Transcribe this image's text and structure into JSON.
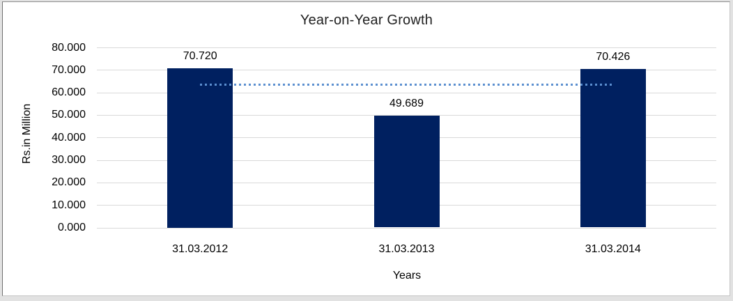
{
  "chart_data": {
    "type": "bar",
    "title": "Year-on-Year Growth",
    "xlabel": "Years",
    "ylabel": "Rs.in Million",
    "categories": [
      "31.03.2012",
      "31.03.2013",
      "31.03.2014"
    ],
    "values": [
      70.72,
      49.689,
      70.426
    ],
    "data_labels": [
      "70.720",
      "49.689",
      "70.426"
    ],
    "ylim": [
      0,
      80
    ],
    "ytick_values": [
      0,
      10,
      20,
      30,
      40,
      50,
      60,
      70,
      80
    ],
    "ytick_labels": [
      "0.000",
      "10.000",
      "20.000",
      "30.000",
      "40.000",
      "50.000",
      "60.000",
      "70.000",
      "80.000"
    ],
    "grid": "horizontal",
    "legend": "none",
    "bar_color": "#002060",
    "gridline_color": "#d9d9d9",
    "trendline": {
      "type": "average",
      "value": 63.612,
      "style": "dotted",
      "color": "#5b8fd0",
      "span": "first-to-last-bar-center"
    }
  }
}
